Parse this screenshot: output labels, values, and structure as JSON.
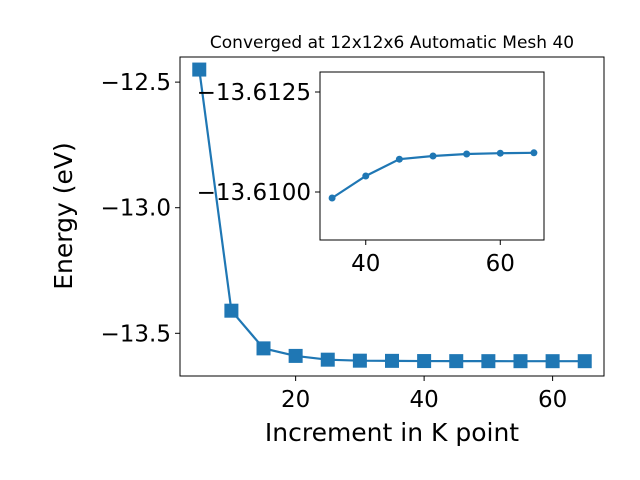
{
  "chart_data": [
    {
      "type": "line",
      "title": "Converged at 12x12x6 Automatic Mesh 40",
      "xlabel": "Increment in K point",
      "ylabel": "Energy (eV)",
      "xlim": [
        2,
        68
      ],
      "ylim": [
        -13.67,
        -12.4
      ],
      "xticks": [
        20,
        40,
        60
      ],
      "yticks": [
        -12.5,
        -13.0,
        -13.5
      ],
      "ytick_labels": [
        "−12.5",
        "−13.0",
        "−13.5"
      ],
      "marker": "square",
      "color": "#1f77b4",
      "series": [
        {
          "x": [
            5,
            10,
            15,
            20,
            25,
            30,
            35,
            40,
            45,
            50,
            55,
            60,
            65
          ],
          "values": [
            -12.45,
            -13.41,
            -13.56,
            -13.59,
            -13.605,
            -13.609,
            -13.6097,
            -13.6105,
            -13.6108,
            -13.6109,
            -13.611,
            -13.611,
            -13.611
          ]
        }
      ]
    },
    {
      "type": "line",
      "title": "",
      "xlabel": "",
      "ylabel": "",
      "xlim": [
        33.2,
        66.5
      ],
      "ylim": [
        -13.6088,
        -13.613
      ],
      "xticks": [
        40,
        60
      ],
      "yticks": [
        -13.6125,
        -13.61
      ],
      "ytick_labels": [
        "−13.6125",
        "−13.6100"
      ],
      "marker": "circle",
      "color": "#1f77b4",
      "series": [
        {
          "x": [
            35,
            40,
            45,
            50,
            55,
            60,
            65
          ],
          "values": [
            -13.60985,
            -13.6104,
            -13.61082,
            -13.6109,
            -13.61095,
            -13.61097,
            -13.61098
          ]
        }
      ]
    }
  ]
}
